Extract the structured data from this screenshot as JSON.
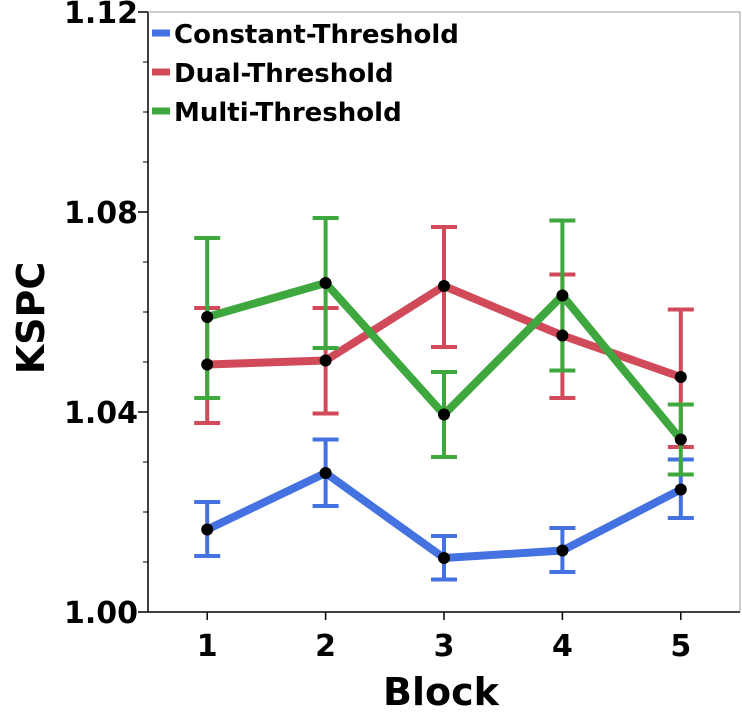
{
  "chart_data": {
    "type": "line",
    "title": "",
    "xlabel": "Block",
    "ylabel": "KSPC",
    "x": [
      1,
      2,
      3,
      4,
      5
    ],
    "x_tick_labels": [
      "1",
      "2",
      "3",
      "4",
      "5"
    ],
    "xlim": [
      0.5,
      5.5
    ],
    "ylim": [
      1.0,
      1.12
    ],
    "y_major_ticks": [
      1.0,
      1.04,
      1.08,
      1.12
    ],
    "y_major_tick_labels": [
      "1.00",
      "1.04",
      "1.08",
      "1.12"
    ],
    "y_minor_tick_step": 0.01,
    "grid": false,
    "legend_position": "top-left",
    "series": [
      {
        "name": "Constant-Threshold",
        "color": "#4472E0",
        "values": [
          1.0165,
          1.0278,
          1.0108,
          1.0123,
          1.0245
        ],
        "error_low": [
          1.0112,
          1.0212,
          1.0065,
          1.008,
          1.0188
        ],
        "error_high": [
          1.022,
          1.0345,
          1.0152,
          1.0168,
          1.0305
        ]
      },
      {
        "name": "Dual-Threshold",
        "color": "#D04A5A",
        "values": [
          1.0495,
          1.0503,
          1.0652,
          1.0553,
          1.047
        ],
        "error_low": [
          1.0378,
          1.0397,
          1.053,
          1.0428,
          1.033
        ],
        "error_high": [
          1.0608,
          1.0608,
          1.077,
          1.0675,
          1.0605
        ]
      },
      {
        "name": "Multi-Threshold",
        "color": "#3EA83E",
        "values": [
          1.059,
          1.0658,
          1.0395,
          1.0633,
          1.0345
        ],
        "error_low": [
          1.0428,
          1.0528,
          1.031,
          1.0483,
          1.0275
        ],
        "error_high": [
          1.0748,
          1.0788,
          1.048,
          1.0783,
          1.0415
        ]
      }
    ],
    "point_marker_color": "#000000"
  }
}
